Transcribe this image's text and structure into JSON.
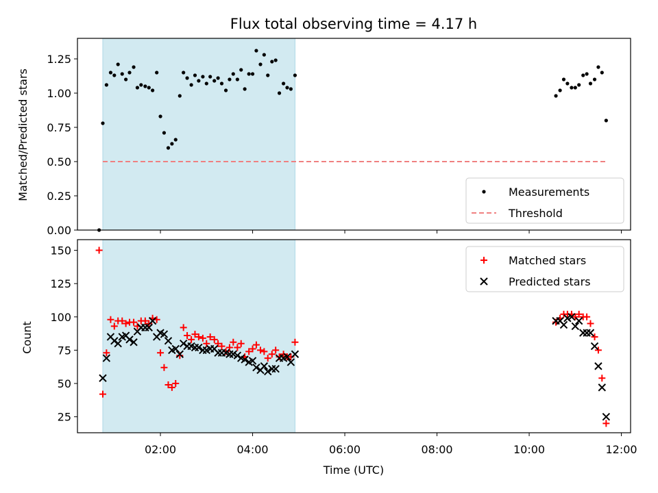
{
  "chart_data": {
    "type": "scatter",
    "title": "Flux total observing time = 4.17 h",
    "xlabel": "Time (UTC)",
    "x_unit": "hours UTC",
    "xlim": [
      0.2,
      12.2
    ],
    "x_ticks": [
      2,
      4,
      6,
      8,
      10,
      12
    ],
    "x_tick_labels": [
      "02:00",
      "04:00",
      "06:00",
      "08:00",
      "10:00",
      "12:00"
    ],
    "shaded_region": {
      "x_start": 0.75,
      "x_end": 4.92,
      "color": "#add8e6"
    },
    "panels": [
      {
        "id": "ratio",
        "ylabel": "Matched/Predicted stars",
        "ylim": [
          0,
          1.4
        ],
        "y_ticks": [
          0,
          0.25,
          0.5,
          0.75,
          1.0,
          1.25
        ],
        "y_tick_labels": [
          "0.00",
          "0.25",
          "0.50",
          "0.75",
          "1.00",
          "1.25"
        ],
        "legend_position": "lower-right",
        "series": [
          {
            "name": "Measurements",
            "marker": "dot",
            "color": "#000000",
            "points": [
              [
                0.67,
                0.0
              ],
              [
                0.75,
                0.78
              ],
              [
                0.83,
                1.06
              ],
              [
                0.92,
                1.15
              ],
              [
                1.0,
                1.13
              ],
              [
                1.08,
                1.21
              ],
              [
                1.17,
                1.14
              ],
              [
                1.25,
                1.1
              ],
              [
                1.33,
                1.15
              ],
              [
                1.42,
                1.19
              ],
              [
                1.5,
                1.04
              ],
              [
                1.58,
                1.06
              ],
              [
                1.67,
                1.05
              ],
              [
                1.75,
                1.04
              ],
              [
                1.83,
                1.02
              ],
              [
                1.92,
                1.15
              ],
              [
                2.0,
                0.83
              ],
              [
                2.08,
                0.71
              ],
              [
                2.17,
                0.6
              ],
              [
                2.25,
                0.63
              ],
              [
                2.33,
                0.66
              ],
              [
                2.42,
                0.98
              ],
              [
                2.5,
                1.15
              ],
              [
                2.58,
                1.11
              ],
              [
                2.67,
                1.06
              ],
              [
                2.75,
                1.13
              ],
              [
                2.83,
                1.09
              ],
              [
                2.92,
                1.12
              ],
              [
                3.0,
                1.07
              ],
              [
                3.08,
                1.12
              ],
              [
                3.17,
                1.09
              ],
              [
                3.25,
                1.11
              ],
              [
                3.33,
                1.07
              ],
              [
                3.42,
                1.02
              ],
              [
                3.5,
                1.1
              ],
              [
                3.58,
                1.14
              ],
              [
                3.67,
                1.1
              ],
              [
                3.75,
                1.17
              ],
              [
                3.83,
                1.03
              ],
              [
                3.92,
                1.14
              ],
              [
                4.0,
                1.14
              ],
              [
                4.08,
                1.31
              ],
              [
                4.17,
                1.21
              ],
              [
                4.25,
                1.28
              ],
              [
                4.33,
                1.13
              ],
              [
                4.42,
                1.23
              ],
              [
                4.5,
                1.24
              ],
              [
                4.58,
                1.0
              ],
              [
                4.67,
                1.07
              ],
              [
                4.75,
                1.04
              ],
              [
                4.83,
                1.03
              ],
              [
                4.92,
                1.13
              ],
              [
                10.58,
                0.98
              ],
              [
                10.67,
                1.02
              ],
              [
                10.75,
                1.1
              ],
              [
                10.83,
                1.07
              ],
              [
                10.92,
                1.04
              ],
              [
                11.0,
                1.04
              ],
              [
                11.08,
                1.06
              ],
              [
                11.17,
                1.13
              ],
              [
                11.25,
                1.14
              ],
              [
                11.33,
                1.07
              ],
              [
                11.42,
                1.1
              ],
              [
                11.5,
                1.19
              ],
              [
                11.58,
                1.15
              ],
              [
                11.67,
                0.8
              ]
            ]
          },
          {
            "name": "Threshold",
            "marker": "dashed-line",
            "color": "#f08080",
            "points": [
              [
                0.75,
                0.5
              ],
              [
                11.67,
                0.5
              ]
            ]
          }
        ]
      },
      {
        "id": "count",
        "ylabel": "Count",
        "ylim": [
          13,
          158
        ],
        "y_ticks": [
          25,
          50,
          75,
          100,
          125,
          150
        ],
        "y_tick_labels": [
          "25",
          "50",
          "75",
          "100",
          "125",
          "150"
        ],
        "legend_position": "upper-right",
        "series": [
          {
            "name": "Matched stars",
            "marker": "plus",
            "color": "#ff0000",
            "points": [
              [
                0.67,
                150
              ],
              [
                0.75,
                42
              ],
              [
                0.83,
                73
              ],
              [
                0.92,
                98
              ],
              [
                1.0,
                93
              ],
              [
                1.08,
                97
              ],
              [
                1.17,
                97
              ],
              [
                1.25,
                95
              ],
              [
                1.33,
                96
              ],
              [
                1.42,
                96
              ],
              [
                1.5,
                93
              ],
              [
                1.58,
                97
              ],
              [
                1.67,
                97
              ],
              [
                1.75,
                95
              ],
              [
                1.83,
                99
              ],
              [
                1.92,
                98
              ],
              [
                2.0,
                73
              ],
              [
                2.08,
                62
              ],
              [
                2.17,
                49
              ],
              [
                2.25,
                47
              ],
              [
                2.33,
                50
              ],
              [
                2.42,
                71
              ],
              [
                2.5,
                92
              ],
              [
                2.58,
                86
              ],
              [
                2.67,
                83
              ],
              [
                2.75,
                87
              ],
              [
                2.83,
                85
              ],
              [
                2.92,
                84
              ],
              [
                3.0,
                80
              ],
              [
                3.08,
                85
              ],
              [
                3.17,
                83
              ],
              [
                3.25,
                80
              ],
              [
                3.33,
                78
              ],
              [
                3.42,
                74
              ],
              [
                3.5,
                77
              ],
              [
                3.58,
                81
              ],
              [
                3.67,
                77
              ],
              [
                3.75,
                80
              ],
              [
                3.83,
                70
              ],
              [
                3.92,
                74
              ],
              [
                4.0,
                76
              ],
              [
                4.08,
                79
              ],
              [
                4.17,
                75
              ],
              [
                4.25,
                74
              ],
              [
                4.33,
                69
              ],
              [
                4.42,
                72
              ],
              [
                4.5,
                75
              ],
              [
                4.58,
                70
              ],
              [
                4.67,
                72
              ],
              [
                4.75,
                70
              ],
              [
                4.83,
                70
              ],
              [
                4.92,
                81
              ],
              [
                10.58,
                96
              ],
              [
                10.67,
                99
              ],
              [
                10.75,
                102
              ],
              [
                10.83,
                102
              ],
              [
                10.92,
                102
              ],
              [
                11.0,
                100
              ],
              [
                11.08,
                102
              ],
              [
                11.17,
                100
              ],
              [
                11.25,
                100
              ],
              [
                11.33,
                95
              ],
              [
                11.42,
                85
              ],
              [
                11.5,
                75
              ],
              [
                11.58,
                54
              ],
              [
                11.67,
                20
              ]
            ]
          },
          {
            "name": "Predicted stars",
            "marker": "x",
            "color": "#000000",
            "points": [
              [
                0.75,
                54
              ],
              [
                0.83,
                69
              ],
              [
                0.92,
                85
              ],
              [
                1.0,
                82
              ],
              [
                1.08,
                80
              ],
              [
                1.17,
                85
              ],
              [
                1.25,
                86
              ],
              [
                1.33,
                83
              ],
              [
                1.42,
                81
              ],
              [
                1.5,
                89
              ],
              [
                1.58,
                92
              ],
              [
                1.67,
                92
              ],
              [
                1.75,
                92
              ],
              [
                1.83,
                97
              ],
              [
                1.92,
                85
              ],
              [
                2.0,
                88
              ],
              [
                2.08,
                87
              ],
              [
                2.17,
                82
              ],
              [
                2.25,
                75
              ],
              [
                2.33,
                76
              ],
              [
                2.42,
                72
              ],
              [
                2.5,
                80
              ],
              [
                2.58,
                78
              ],
              [
                2.67,
                78
              ],
              [
                2.75,
                77
              ],
              [
                2.83,
                77
              ],
              [
                2.92,
                75
              ],
              [
                3.0,
                75
              ],
              [
                3.08,
                76
              ],
              [
                3.17,
                76
              ],
              [
                3.25,
                73
              ],
              [
                3.33,
                73
              ],
              [
                3.42,
                73
              ],
              [
                3.5,
                72
              ],
              [
                3.58,
                72
              ],
              [
                3.67,
                71
              ],
              [
                3.75,
                69
              ],
              [
                3.83,
                68
              ],
              [
                3.92,
                66
              ],
              [
                4.0,
                67
              ],
              [
                4.08,
                62
              ],
              [
                4.17,
                60
              ],
              [
                4.25,
                63
              ],
              [
                4.33,
                59
              ],
              [
                4.42,
                61
              ],
              [
                4.5,
                61
              ],
              [
                4.58,
                69
              ],
              [
                4.67,
                69
              ],
              [
                4.75,
                70
              ],
              [
                4.83,
                66
              ],
              [
                4.92,
                72
              ],
              [
                10.58,
                97
              ],
              [
                10.67,
                97
              ],
              [
                10.75,
                94
              ],
              [
                10.83,
                99
              ],
              [
                10.92,
                100
              ],
              [
                11.0,
                93
              ],
              [
                11.08,
                97
              ],
              [
                11.17,
                88
              ],
              [
                11.25,
                88
              ],
              [
                11.33,
                88
              ],
              [
                11.42,
                78
              ],
              [
                11.5,
                63
              ],
              [
                11.58,
                47
              ],
              [
                11.67,
                25
              ]
            ]
          }
        ]
      }
    ]
  }
}
